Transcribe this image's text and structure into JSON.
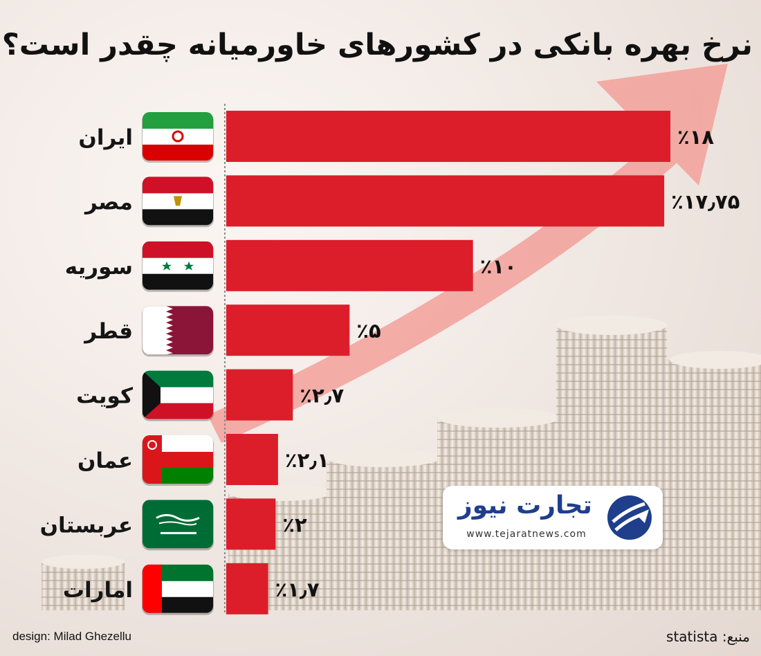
{
  "title": "نرخ بهره بانکی در کشورهای خاورمیانه چقدر است؟",
  "footer": {
    "design_credit": "design: Milad Ghezellu",
    "source": "منبع: statista"
  },
  "logo": {
    "name": "تجارت نیوز",
    "url": "www.tejaratnews.com"
  },
  "colors": {
    "bar": "#dc1e2b",
    "arrow": "#f2a09a",
    "logo_blue": "#1f3e8c"
  },
  "chart_data": {
    "type": "bar",
    "orientation": "horizontal",
    "categories": [
      "ایران",
      "مصر",
      "سوریه",
      "قطر",
      "کویت",
      "عمان",
      "عربستان",
      "امارات"
    ],
    "values": [
      18,
      17.75,
      10,
      5,
      2.7,
      2.1,
      2,
      1.7
    ],
    "value_labels": [
      "٪۱۸",
      "٪۱۷٫۷۵",
      "٪۱۰",
      "٪۵",
      "٪۲٫۷",
      "٪۲٫۱",
      "٪۲",
      "٪۱٫۷"
    ],
    "flags": [
      "iran-flag",
      "egypt-flag",
      "syria-flag",
      "qatar-flag",
      "kuwait-flag",
      "oman-flag",
      "saudi-arabia-flag",
      "uae-flag"
    ],
    "xlim": [
      0,
      18
    ],
    "grid": false,
    "title": "نرخ بهره بانکی در کشورهای خاورمیانه چقدر است؟"
  }
}
